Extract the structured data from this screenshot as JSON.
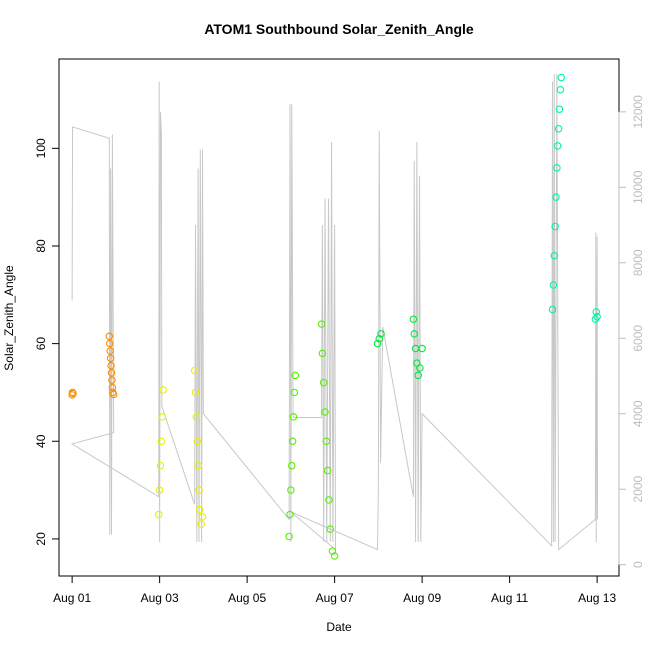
{
  "chart_data": {
    "type": "scatter",
    "title": "ATOM1 Southbound Solar_Zenith_Angle",
    "xlabel": "Date",
    "ylabel": "Solar_Zenith_Angle",
    "x_ticks": [
      "Aug 01",
      "Aug 03",
      "Aug 05",
      "Aug 07",
      "Aug 09",
      "Aug 11",
      "Aug 13"
    ],
    "x_tick_days": [
      1,
      3,
      5,
      7,
      9,
      11,
      13
    ],
    "x_range_days": [
      0.7,
      13.5
    ],
    "y_ticks": [
      20,
      40,
      60,
      80,
      100
    ],
    "y_range": [
      12.4,
      118.3
    ],
    "y2_ticks": [
      0,
      2000,
      4000,
      6000,
      8000,
      10000,
      12000
    ],
    "y2_range": [
      -300,
      13400
    ],
    "colors": {
      "grey_line": "#c8c8c8",
      "orange": "#ff8c00",
      "yellow": "#e8f000",
      "green": "#55f000",
      "bright_green": "#00e83a",
      "cyan": "#00f5a0",
      "frame": "#000000",
      "right_axis": "#bdbdbd"
    },
    "series": [
      {
        "color": "#ff8c00",
        "points": [
          [
            1.0,
            49.5
          ],
          [
            1.01,
            50.0
          ],
          [
            1.02,
            49.8
          ],
          [
            1.85,
            61.5
          ],
          [
            1.86,
            60.0
          ],
          [
            1.87,
            58.5
          ],
          [
            1.88,
            57.0
          ],
          [
            1.89,
            55.5
          ],
          [
            1.9,
            54.0
          ],
          [
            1.91,
            52.5
          ],
          [
            1.92,
            51.0
          ],
          [
            1.93,
            50.0
          ],
          [
            1.95,
            49.6
          ]
        ]
      },
      {
        "color": "#e8f000",
        "points": [
          [
            2.98,
            25.0
          ],
          [
            3.0,
            30.0
          ],
          [
            3.02,
            35.0
          ],
          [
            3.04,
            40.0
          ],
          [
            3.06,
            45.0
          ],
          [
            3.08,
            50.5
          ],
          [
            3.8,
            54.5
          ],
          [
            3.82,
            50.0
          ],
          [
            3.84,
            45.0
          ],
          [
            3.86,
            40.0
          ],
          [
            3.88,
            35.0
          ],
          [
            3.9,
            30.0
          ],
          [
            3.92,
            26.0
          ],
          [
            3.95,
            23.0
          ],
          [
            3.98,
            24.5
          ]
        ]
      },
      {
        "color": "#55f000",
        "points": [
          [
            5.96,
            20.5
          ],
          [
            5.98,
            25.0
          ],
          [
            6.0,
            30.0
          ],
          [
            6.02,
            35.0
          ],
          [
            6.04,
            40.0
          ],
          [
            6.06,
            45.0
          ],
          [
            6.08,
            50.0
          ],
          [
            6.1,
            53.5
          ],
          [
            6.7,
            64.0
          ],
          [
            6.72,
            58.0
          ],
          [
            6.75,
            52.0
          ],
          [
            6.78,
            46.0
          ],
          [
            6.81,
            40.0
          ],
          [
            6.84,
            34.0
          ],
          [
            6.87,
            28.0
          ],
          [
            6.9,
            22.0
          ],
          [
            6.95,
            17.5
          ],
          [
            7.0,
            16.5
          ]
        ]
      },
      {
        "color": "#00e83a",
        "points": [
          [
            7.98,
            60.0
          ],
          [
            8.02,
            61.0
          ],
          [
            8.06,
            62.0
          ],
          [
            8.8,
            65.0
          ],
          [
            8.82,
            62.0
          ],
          [
            8.85,
            59.0
          ],
          [
            8.88,
            56.0
          ],
          [
            8.91,
            53.5
          ],
          [
            8.95,
            55.0
          ],
          [
            9.0,
            59.0
          ]
        ]
      },
      {
        "color": "#00f5a0",
        "points": [
          [
            11.98,
            67.0
          ],
          [
            12.0,
            72.0
          ],
          [
            12.02,
            78.0
          ],
          [
            12.04,
            84.0
          ],
          [
            12.06,
            90.0
          ],
          [
            12.08,
            96.0
          ],
          [
            12.1,
            100.5
          ],
          [
            12.12,
            104.0
          ],
          [
            12.14,
            108.0
          ],
          [
            12.16,
            112.0
          ],
          [
            12.18,
            114.5
          ],
          [
            12.96,
            65.0
          ],
          [
            12.98,
            66.5
          ],
          [
            13.0,
            65.5
          ]
        ]
      }
    ],
    "secondary_line": {
      "axis": "right",
      "color": "#c8c8c8",
      "points": [
        [
          1.0,
          7000
        ],
        [
          1.01,
          11600
        ],
        [
          1.85,
          11300
        ],
        [
          1.86,
          800
        ],
        [
          1.88,
          10500
        ],
        [
          1.9,
          800
        ],
        [
          1.92,
          11400
        ],
        [
          1.95,
          3500
        ],
        [
          1.0,
          3200
        ],
        [
          2.98,
          1800
        ],
        [
          2.99,
          12800
        ],
        [
          3.0,
          600
        ],
        [
          3.02,
          12000
        ],
        [
          3.04,
          11400
        ],
        [
          3.05,
          4200
        ],
        [
          3.8,
          1600
        ],
        [
          3.82,
          9000
        ],
        [
          3.85,
          600
        ],
        [
          3.88,
          10500
        ],
        [
          3.9,
          600
        ],
        [
          3.93,
          11000
        ],
        [
          3.96,
          600
        ],
        [
          3.98,
          11000
        ],
        [
          4.0,
          4000
        ],
        [
          5.96,
          1200
        ],
        [
          5.98,
          12200
        ],
        [
          6.0,
          600
        ],
        [
          6.02,
          12200
        ],
        [
          6.05,
          4000
        ],
        [
          6.06,
          3900
        ],
        [
          6.7,
          3900
        ],
        [
          6.72,
          9000
        ],
        [
          6.75,
          600
        ],
        [
          6.78,
          9700
        ],
        [
          6.82,
          600
        ],
        [
          6.86,
          9700
        ],
        [
          6.9,
          600
        ],
        [
          6.93,
          11200
        ],
        [
          6.96,
          600
        ],
        [
          7.0,
          9000
        ],
        [
          7.02,
          400
        ],
        [
          6.0,
          1400
        ],
        [
          7.98,
          400
        ],
        [
          8.0,
          2000
        ],
        [
          8.02,
          11500
        ],
        [
          8.05,
          2700
        ],
        [
          8.1,
          6300
        ],
        [
          8.8,
          1800
        ],
        [
          8.82,
          10700
        ],
        [
          8.85,
          600
        ],
        [
          8.88,
          11200
        ],
        [
          8.91,
          600
        ],
        [
          8.94,
          10300
        ],
        [
          8.97,
          600
        ],
        [
          9.0,
          4000
        ],
        [
          11.96,
          500
        ],
        [
          11.98,
          12800
        ],
        [
          12.0,
          600
        ],
        [
          12.02,
          13000
        ],
        [
          12.04,
          600
        ],
        [
          12.08,
          13000
        ],
        [
          12.12,
          400
        ],
        [
          12.96,
          1200
        ],
        [
          12.97,
          8800
        ],
        [
          12.98,
          600
        ],
        [
          13.0,
          8700
        ],
        [
          13.01,
          1200
        ]
      ]
    }
  }
}
